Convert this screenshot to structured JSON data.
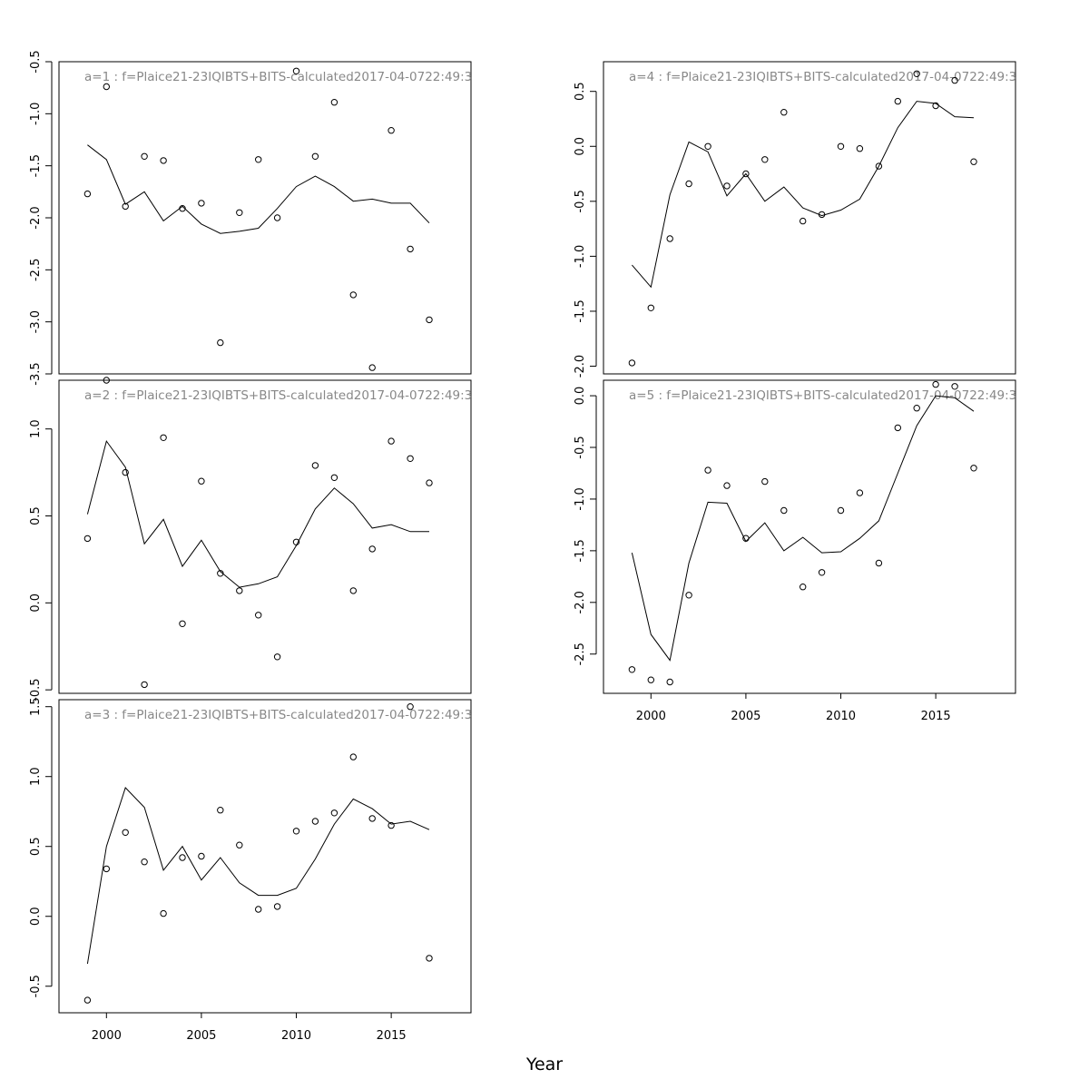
{
  "chart_data": [
    {
      "type": "line",
      "title": "a=1  :  f=Plaice21-23IQIBTS+BITS-calculated2017-04-0722:49:3",
      "x": [
        1999,
        2000,
        2001,
        2002,
        2003,
        2004,
        2005,
        2006,
        2007,
        2008,
        2009,
        2010,
        2011,
        2012,
        2013,
        2014,
        2015,
        2016,
        2017
      ],
      "ylim": [
        -3.5,
        -0.5
      ],
      "yticks": [
        -3.5,
        -3.0,
        -2.5,
        -2.0,
        -1.5,
        -1.0,
        -0.5
      ],
      "ytick_labels": [
        "-3.5",
        "-3.0",
        "-2.5",
        "-2.0",
        "-1.5",
        "-1.0",
        "-0.5"
      ],
      "series": [
        {
          "kind": "line",
          "values": [
            -1.3,
            -1.44,
            -1.87,
            -1.75,
            -2.03,
            -1.89,
            -2.06,
            -2.15,
            -2.13,
            -2.1,
            -1.91,
            -1.7,
            -1.6,
            -1.7,
            -1.84,
            -1.82,
            -1.86,
            -1.86,
            -2.05
          ]
        },
        {
          "kind": "points",
          "values": [
            -1.77,
            -0.74,
            -1.89,
            -1.41,
            -1.45,
            -1.91,
            -1.86,
            -3.2,
            -1.95,
            -1.44,
            -2.0,
            -0.59,
            -1.41,
            -0.89,
            -2.74,
            -3.44,
            -1.16,
            -2.3,
            -2.98
          ]
        }
      ]
    },
    {
      "type": "line",
      "title": "a=2  :  f=Plaice21-23IQIBTS+BITS-calculated2017-04-0722:49:3",
      "x": [
        1999,
        2000,
        2001,
        2002,
        2003,
        2004,
        2005,
        2006,
        2007,
        2008,
        2009,
        2010,
        2011,
        2012,
        2013,
        2014,
        2015,
        2016,
        2017
      ],
      "ylim": [
        -0.52,
        1.28
      ],
      "yticks": [
        -0.5,
        0.0,
        0.5,
        1.0
      ],
      "ytick_labels": [
        "-0.5",
        "0.0",
        "0.5",
        "1.0"
      ],
      "series": [
        {
          "kind": "line",
          "values": [
            0.51,
            0.93,
            0.78,
            0.34,
            0.48,
            0.21,
            0.36,
            0.18,
            0.09,
            0.11,
            0.15,
            0.33,
            0.54,
            0.66,
            0.57,
            0.43,
            0.45,
            0.41,
            0.41
          ]
        },
        {
          "kind": "points",
          "values": [
            0.37,
            1.28,
            0.75,
            -0.47,
            0.95,
            -0.12,
            0.7,
            0.17,
            0.07,
            -0.07,
            -0.31,
            0.35,
            0.79,
            0.72,
            0.07,
            0.31,
            0.93,
            0.83,
            0.69
          ]
        }
      ]
    },
    {
      "type": "line",
      "title": "a=3  :  f=Plaice21-23IQIBTS+BITS-calculated2017-04-0722:49:3",
      "x": [
        1999,
        2000,
        2001,
        2002,
        2003,
        2004,
        2005,
        2006,
        2007,
        2008,
        2009,
        2010,
        2011,
        2012,
        2013,
        2014,
        2015,
        2016,
        2017
      ],
      "ylim": [
        -0.69,
        1.55
      ],
      "yticks": [
        -0.5,
        0.0,
        0.5,
        1.0,
        1.5
      ],
      "ytick_labels": [
        "-0.5",
        "0.0",
        "0.5",
        "1.0",
        "1.5"
      ],
      "series": [
        {
          "kind": "line",
          "values": [
            -0.34,
            0.5,
            0.92,
            0.78,
            0.33,
            0.5,
            0.26,
            0.42,
            0.24,
            0.15,
            0.15,
            0.2,
            0.41,
            0.66,
            0.84,
            0.77,
            0.66,
            0.68,
            0.62
          ]
        },
        {
          "kind": "points",
          "values": [
            -0.6,
            0.34,
            0.6,
            0.39,
            0.02,
            0.42,
            0.43,
            0.76,
            0.51,
            0.05,
            0.07,
            0.61,
            0.68,
            0.74,
            1.14,
            0.7,
            0.65,
            1.5,
            -0.3
          ]
        }
      ]
    },
    {
      "type": "line",
      "title": "a=4  :  f=Plaice21-23IQIBTS+BITS-calculated2017-04-0722:49:3",
      "x": [
        1999,
        2000,
        2001,
        2002,
        2003,
        2004,
        2005,
        2006,
        2007,
        2008,
        2009,
        2010,
        2011,
        2012,
        2013,
        2014,
        2015,
        2016,
        2017
      ],
      "ylim": [
        -2.07,
        0.77
      ],
      "yticks": [
        -2.0,
        -1.5,
        -1.0,
        -0.5,
        0.0,
        0.5
      ],
      "ytick_labels": [
        "-2.0",
        "-1.5",
        "-1.0",
        "-0.5",
        "0.0",
        "0.5"
      ],
      "series": [
        {
          "kind": "line",
          "values": [
            -1.08,
            -1.28,
            -0.44,
            0.04,
            -0.05,
            -0.45,
            -0.25,
            -0.5,
            -0.37,
            -0.56,
            -0.63,
            -0.58,
            -0.48,
            -0.18,
            0.17,
            0.41,
            0.39,
            0.27,
            0.26
          ]
        },
        {
          "kind": "points",
          "values": [
            -1.97,
            -1.47,
            -0.84,
            -0.34,
            0.0,
            -0.36,
            -0.25,
            -0.12,
            0.31,
            -0.68,
            -0.62,
            0.0,
            -0.02,
            -0.18,
            0.41,
            0.66,
            0.37,
            0.6,
            -0.14
          ]
        }
      ]
    },
    {
      "type": "line",
      "title": "a=5  :  f=Plaice21-23IQIBTS+BITS-calculated2017-04-0722:49:3",
      "x": [
        1999,
        2000,
        2001,
        2002,
        2003,
        2004,
        2005,
        2006,
        2007,
        2008,
        2009,
        2010,
        2011,
        2012,
        2013,
        2014,
        2015,
        2016,
        2017
      ],
      "xlim": [
        1997.5,
        2019.2
      ],
      "xticks": [
        2000,
        2005,
        2010,
        2015
      ],
      "xtick_labels": [
        "2000",
        "2005",
        "2010",
        "2015"
      ],
      "ylim": [
        -2.88,
        0.15
      ],
      "yticks": [
        -2.5,
        -2.0,
        -1.5,
        -1.0,
        -0.5,
        0.0
      ],
      "ytick_labels": [
        "-2.5",
        "-2.0",
        "-1.5",
        "-1.0",
        "-0.5",
        "0.0"
      ],
      "series": [
        {
          "kind": "line",
          "values": [
            -1.52,
            -2.31,
            -2.56,
            -1.62,
            -1.03,
            -1.04,
            -1.41,
            -1.23,
            -1.5,
            -1.37,
            -1.52,
            -1.51,
            -1.38,
            -1.21,
            -0.75,
            -0.29,
            0.0,
            -0.02,
            -0.15
          ]
        },
        {
          "kind": "points",
          "values": [
            -2.65,
            -2.75,
            -2.77,
            -1.93,
            -0.72,
            -0.87,
            -1.38,
            -0.83,
            -1.11,
            -1.85,
            -1.71,
            -1.11,
            -0.94,
            -1.62,
            -0.31,
            -0.12,
            0.11,
            0.09,
            -0.7
          ]
        }
      ]
    }
  ],
  "x_axis": {
    "label": "Year",
    "xlim": [
      1997.5,
      2019.2
    ],
    "ticks": [
      2000,
      2005,
      2010,
      2015
    ],
    "tick_labels": [
      "2000",
      "2005",
      "2010",
      "2015"
    ]
  }
}
